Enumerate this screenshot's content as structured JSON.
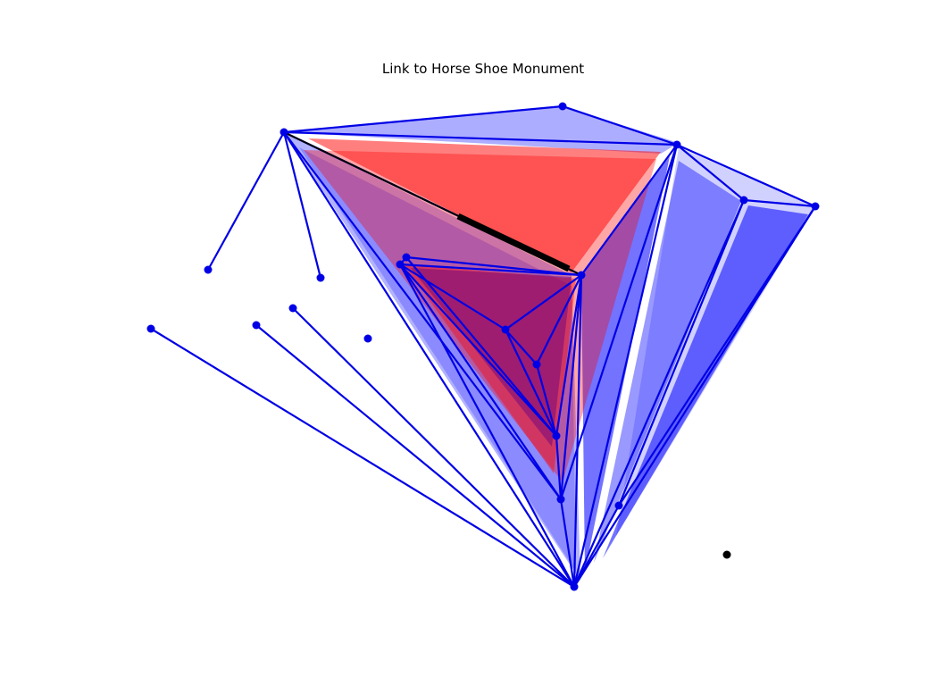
{
  "title": "Link to Horse Shoe Monument",
  "colors": {
    "edge": "#0000e6",
    "node": "#0000e6",
    "highlight": "#000000",
    "outlier": "#000000",
    "fill_blue": "#0000ff",
    "fill_red": "#ff0000"
  }
}
